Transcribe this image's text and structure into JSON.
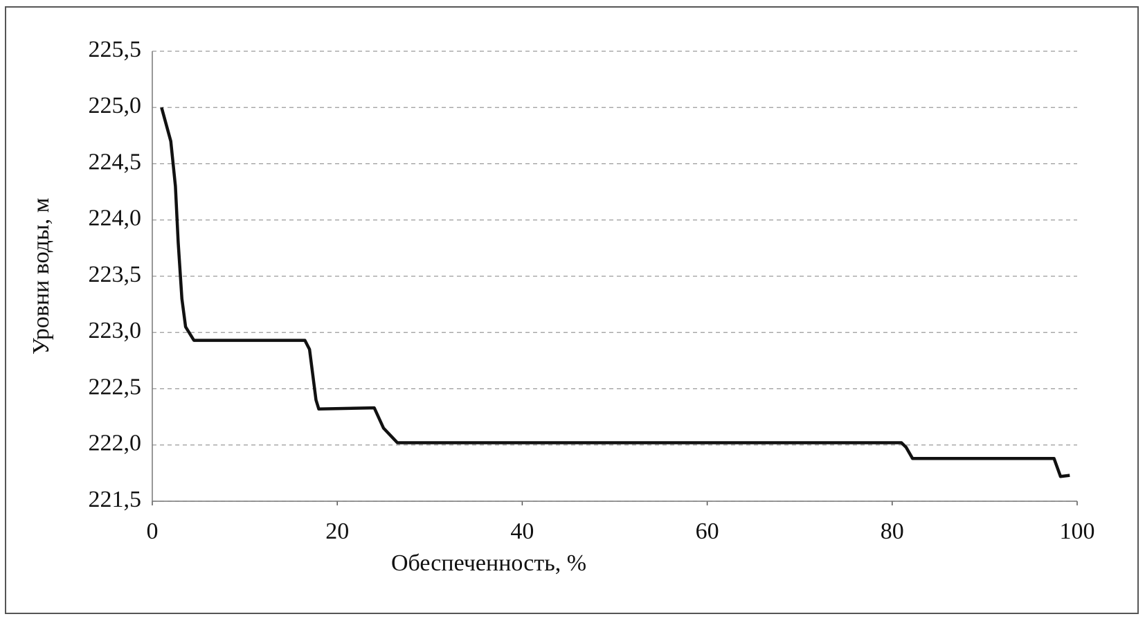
{
  "chart_data": {
    "type": "line",
    "x_label": "Обеспеченность, %",
    "y_label": "Уровни воды, м",
    "x": [
      1,
      2,
      2.5,
      2.8,
      3.2,
      3.6,
      4.5,
      16.5,
      17,
      17.7,
      18,
      24,
      25,
      26.5,
      81,
      81.5,
      82.2,
      97.5,
      98.2,
      99.2
    ],
    "series": [
      {
        "color": "#111111",
        "values": [
          225.0,
          224.7,
          224.3,
          223.8,
          223.3,
          223.05,
          222.93,
          222.93,
          222.85,
          222.4,
          222.32,
          222.33,
          222.15,
          222.02,
          222.02,
          221.98,
          221.88,
          221.88,
          221.72,
          221.73
        ]
      }
    ],
    "xlim": [
      0,
      100
    ],
    "xticks": [
      0,
      20,
      40,
      60,
      80,
      100
    ],
    "ylim": [
      221.5,
      225.5
    ],
    "yticks": [
      {
        "value": 221.5,
        "label": "221,5"
      },
      {
        "value": 222.0,
        "label": "222,0"
      },
      {
        "value": 222.5,
        "label": "222,5"
      },
      {
        "value": 223.0,
        "label": "223,0"
      },
      {
        "value": 223.5,
        "label": "223,5"
      },
      {
        "value": 224.0,
        "label": "224,0"
      },
      {
        "value": 224.5,
        "label": "224,5"
      },
      {
        "value": 225.0,
        "label": "225,0"
      },
      {
        "value": 225.5,
        "label": "225,5"
      }
    ],
    "grid": true
  }
}
